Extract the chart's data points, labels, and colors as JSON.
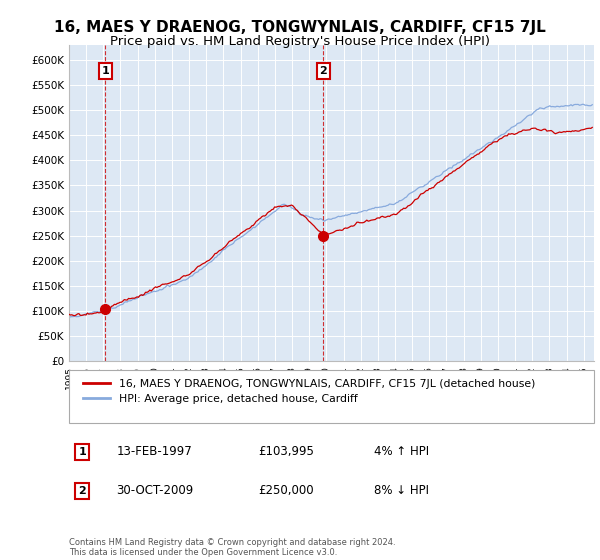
{
  "title": "16, MAES Y DRAENOG, TONGWYNLAIS, CARDIFF, CF15 7JL",
  "subtitle": "Price paid vs. HM Land Registry's House Price Index (HPI)",
  "ylabel_ticks": [
    "£0",
    "£50K",
    "£100K",
    "£150K",
    "£200K",
    "£250K",
    "£300K",
    "£350K",
    "£400K",
    "£450K",
    "£500K",
    "£550K",
    "£600K"
  ],
  "ylim": [
    0,
    630000
  ],
  "yticks": [
    0,
    50000,
    100000,
    150000,
    200000,
    250000,
    300000,
    350000,
    400000,
    450000,
    500000,
    550000,
    600000
  ],
  "x_start_year": 1995,
  "x_end_year": 2025,
  "legend_line1": "16, MAES Y DRAENOG, TONGWYNLAIS, CARDIFF, CF15 7JL (detached house)",
  "legend_line2": "HPI: Average price, detached house, Cardiff",
  "annotation1_label": "1",
  "annotation1_date": "13-FEB-1997",
  "annotation1_price": "£103,995",
  "annotation1_hpi": "4% ↑ HPI",
  "annotation1_year": 1997.12,
  "annotation1_value": 103995,
  "annotation2_label": "2",
  "annotation2_date": "30-OCT-2009",
  "annotation2_price": "£250,000",
  "annotation2_hpi": "8% ↓ HPI",
  "annotation2_year": 2009.83,
  "annotation2_value": 250000,
  "line_color_price": "#cc0000",
  "line_color_hpi": "#88aadd",
  "background_color": "#dde8f4",
  "plot_bg_color": "#dde8f4",
  "footer_text": "Contains HM Land Registry data © Crown copyright and database right 2024.\nThis data is licensed under the Open Government Licence v3.0.",
  "title_fontsize": 11,
  "subtitle_fontsize": 9.5
}
